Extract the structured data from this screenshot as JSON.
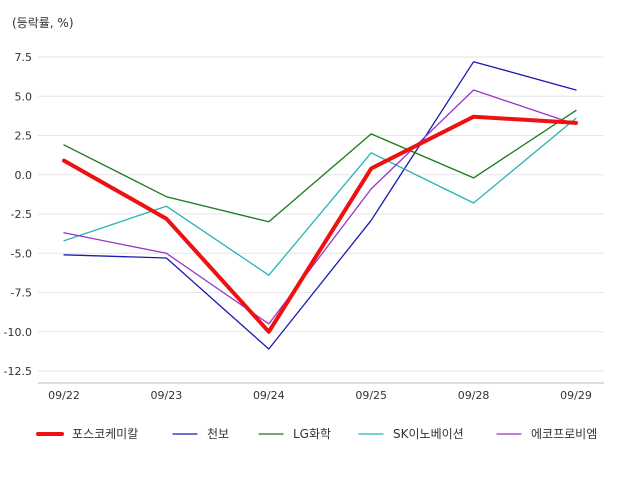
{
  "chart_data": {
    "type": "line",
    "unit_label": "(등락률, %)",
    "categories": [
      "09/22",
      "09/23",
      "09/24",
      "09/25",
      "09/28",
      "09/29"
    ],
    "ylim": [
      -12.5,
      7.5
    ],
    "y_ticks": [
      7.5,
      5.0,
      2.5,
      0.0,
      -2.5,
      -5.0,
      -7.5,
      -10.0,
      -12.5
    ],
    "y_tick_labels": [
      "7.5",
      "5.0",
      "2.5",
      "0.0",
      "-2.5",
      "-5.0",
      "-7.5",
      "-10.0",
      "-12.5"
    ],
    "grid": true,
    "legend_position": "bottom",
    "series": [
      {
        "name": "포스코케미칼",
        "color": "#ee1111",
        "emphasis": true,
        "values": [
          0.9,
          -2.8,
          -10.0,
          0.4,
          3.7,
          3.3
        ]
      },
      {
        "name": "천보",
        "color": "#1a1ab3",
        "emphasis": false,
        "values": [
          -5.1,
          -5.3,
          -11.1,
          -2.9,
          7.2,
          5.4
        ]
      },
      {
        "name": "LG화학",
        "color": "#1a7a1a",
        "emphasis": false,
        "values": [
          1.9,
          -1.4,
          -3.0,
          2.6,
          -0.2,
          4.1
        ]
      },
      {
        "name": "SK이노베이션",
        "color": "#2ab3b3",
        "emphasis": false,
        "values": [
          -4.2,
          -2.0,
          -6.4,
          1.4,
          -1.8,
          3.6
        ]
      },
      {
        "name": "에코프로비엠",
        "color": "#9a33cc",
        "emphasis": false,
        "values": [
          -3.7,
          -5.0,
          -9.5,
          -0.9,
          5.4,
          3.2
        ]
      }
    ]
  }
}
